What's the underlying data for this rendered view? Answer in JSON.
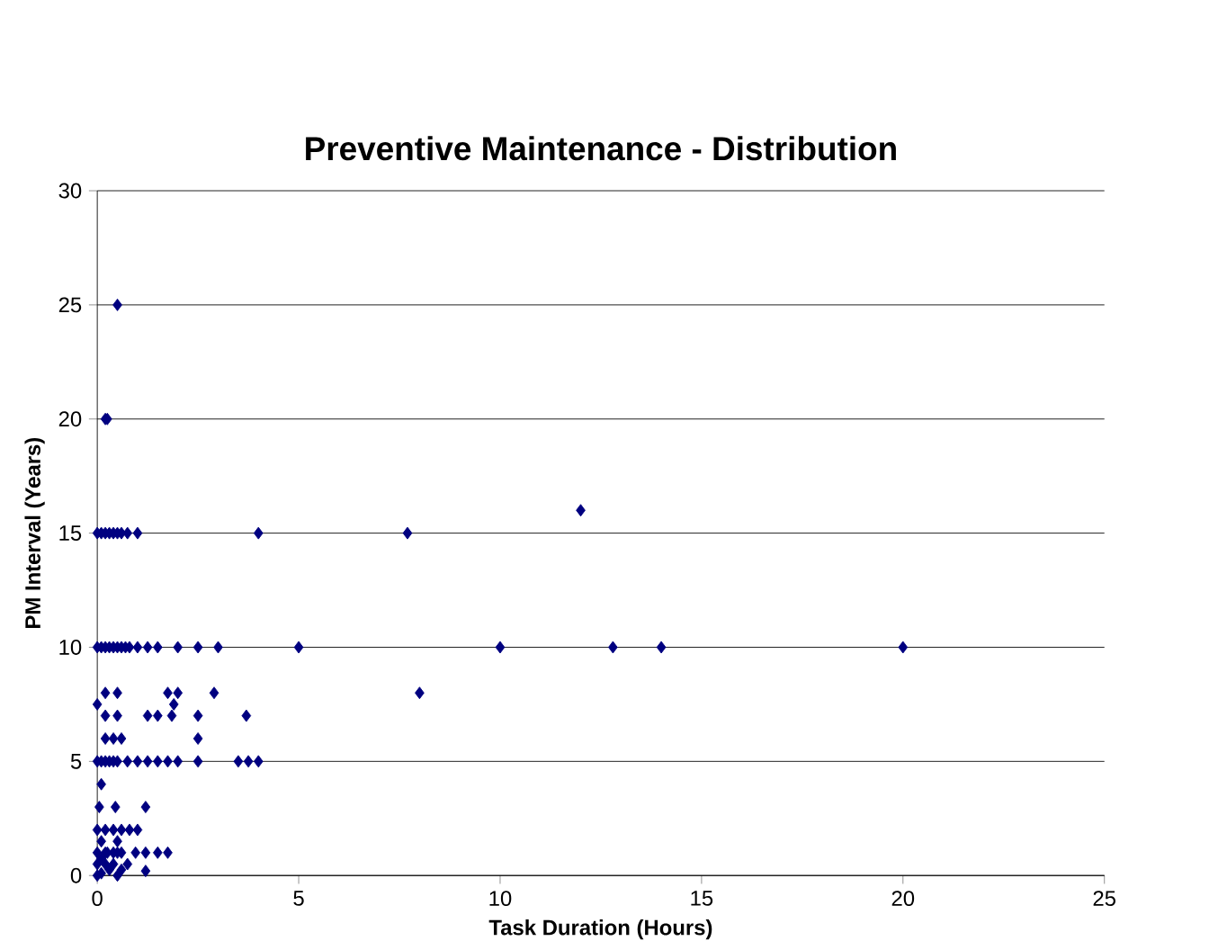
{
  "chart_data": {
    "type": "scatter",
    "title": "Preventive Maintenance - Distribution",
    "xlabel": "Task Duration (Hours)",
    "ylabel": "PM Interval (Years)",
    "marker": "diamond",
    "grid": "y",
    "xlim": [
      0,
      25
    ],
    "ylim": [
      0,
      30
    ],
    "xticks": [
      0,
      5,
      10,
      15,
      20,
      25
    ],
    "yticks": [
      0,
      5,
      10,
      15,
      20,
      25,
      30
    ],
    "series": [
      {
        "color": "#000080",
        "x": [
          0.5,
          0.2,
          0.25,
          12,
          0,
          0.1,
          0.2,
          0.3,
          0.4,
          0.5,
          0.6,
          0.75,
          1,
          4,
          7.7,
          0,
          0.1,
          0.2,
          0.3,
          0.4,
          0.5,
          0.6,
          0.7,
          0.8,
          1,
          1.25,
          1.5,
          2,
          2.5,
          3,
          5,
          10,
          12.8,
          14,
          20,
          8,
          0.2,
          0.5,
          1.75,
          2,
          2.9,
          0,
          1.9,
          0.2,
          0.5,
          1.25,
          1.5,
          1.85,
          2.5,
          3.7,
          0.2,
          0.4,
          0.6,
          2.5,
          0,
          0.1,
          0.2,
          0.3,
          0.4,
          0.5,
          0.75,
          1,
          1.25,
          1.5,
          1.75,
          2,
          2.5,
          3.5,
          3.75,
          4,
          0.1,
          0.05,
          0.45,
          1.2,
          0,
          0.2,
          0.4,
          0.6,
          0.8,
          1,
          0,
          0.2,
          0.4,
          0.6,
          0.95,
          1.2,
          1.5,
          1.75,
          1.2,
          0,
          0.1,
          0.2,
          0.3,
          0.5,
          0.1,
          0.4,
          0.6,
          0,
          0.25,
          0.5,
          0.75,
          0.1,
          0.5
        ],
        "values": [
          25,
          20,
          20,
          16,
          15,
          15,
          15,
          15,
          15,
          15,
          15,
          15,
          15,
          15,
          15,
          10,
          10,
          10,
          10,
          10,
          10,
          10,
          10,
          10,
          10,
          10,
          10,
          10,
          10,
          10,
          10,
          10,
          10,
          10,
          10,
          8,
          8,
          8,
          8,
          8,
          8,
          7.5,
          7.5,
          7,
          7,
          7,
          7,
          7,
          7,
          7,
          6,
          6,
          6,
          6,
          5,
          5,
          5,
          5,
          5,
          5,
          5,
          5,
          5,
          5,
          5,
          5,
          5,
          5,
          5,
          5,
          4,
          3,
          3,
          3,
          2,
          2,
          2,
          2,
          2,
          2,
          1,
          1,
          1,
          1,
          1,
          1,
          1,
          1,
          0.2,
          0,
          0.1,
          0.5,
          0.25,
          0,
          0.75,
          0.5,
          0.25,
          0.5,
          1,
          1,
          0.5,
          1.5,
          1.5
        ]
      }
    ]
  }
}
